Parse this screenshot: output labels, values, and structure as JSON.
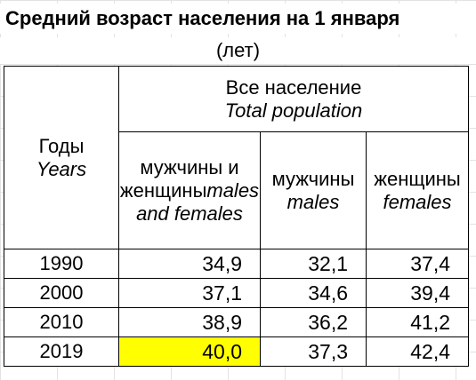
{
  "title": "Средний возраст населения на 1 января",
  "unit": "(лет)",
  "header": {
    "years_ru": "Годы",
    "years_en": "Years",
    "total_ru": "Все население",
    "total_en": "Total population",
    "both_ru": "мужчины и женщины",
    "both_en": "males and females",
    "males_ru": "мужчины",
    "males_en": "males",
    "females_ru": "женщины",
    "females_en": "females"
  },
  "rows": [
    {
      "year": "1990",
      "both": "34,9",
      "males": "32,1",
      "females": "37,4"
    },
    {
      "year": "2000",
      "both": "37,1",
      "males": "34,6",
      "females": "39,4"
    },
    {
      "year": "2010",
      "both": "38,9",
      "males": "36,2",
      "females": "41,2"
    },
    {
      "year": "2019",
      "both": "40,0",
      "males": "37,3",
      "females": "42,4"
    }
  ],
  "highlight_color": "#ffff00"
}
